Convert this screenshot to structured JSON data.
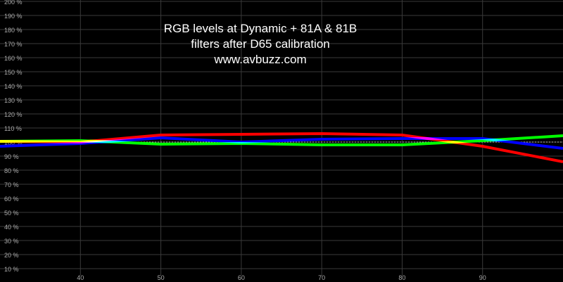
{
  "chart_data": {
    "type": "line",
    "title_lines": [
      "RGB levels at Dynamic + 81A & 81B",
      "filters after D65 calibration",
      "www.avbuzz.com"
    ],
    "xlim": [
      30,
      100
    ],
    "ylim": [
      0,
      200
    ],
    "x_ticks": [
      40,
      50,
      60,
      70,
      80,
      90
    ],
    "y_ticks": [
      "10 %",
      "20 %",
      "30 %",
      "40 %",
      "50 %",
      "60 %",
      "70 %",
      "80 %",
      "90 %",
      "100 %",
      "110 %",
      "120 %",
      "130 %",
      "140 %",
      "150 %",
      "160 %",
      "170 %",
      "180 %",
      "190 %",
      "200 %"
    ],
    "grid": true,
    "reference_line": {
      "y": 100,
      "style": "dashed",
      "color": "#bbbbbb"
    },
    "x": [
      30,
      40,
      50,
      60,
      70,
      80,
      90,
      100
    ],
    "series": [
      {
        "color": "#ff0000",
        "values": [
          100.5,
          100,
          105,
          105.5,
          106,
          105,
          97,
          86
        ]
      },
      {
        "color": "#00ff00",
        "values": [
          100.5,
          101,
          98.5,
          99,
          98,
          98,
          101,
          104.5
        ]
      },
      {
        "color": "#0000ff",
        "values": [
          97,
          99,
          103,
          100,
          102,
          102.5,
          102.5,
          95.5
        ]
      }
    ]
  }
}
